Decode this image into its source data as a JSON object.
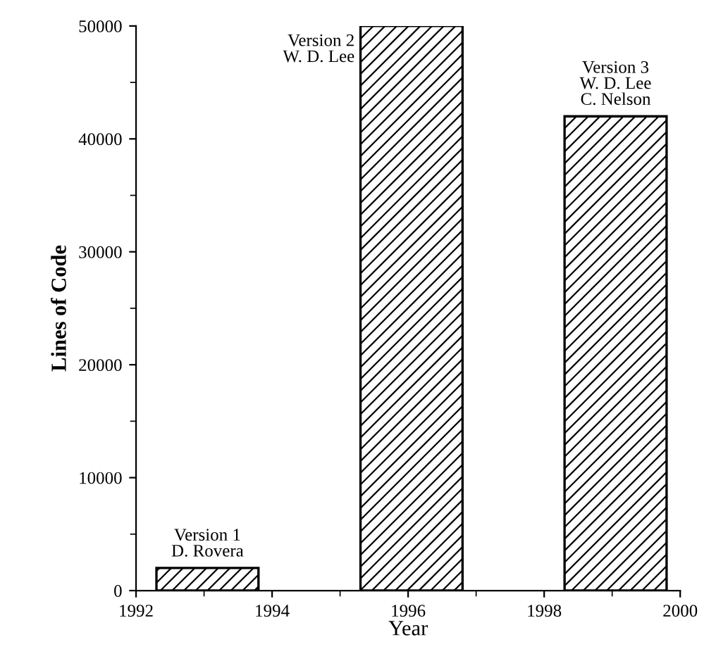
{
  "chart_data": {
    "type": "bar",
    "xlabel": "Year",
    "ylabel": "Lines of Code",
    "x": [
      1993.05,
      1996.05,
      1999.05
    ],
    "values": [
      2000,
      50000,
      42000
    ],
    "color": "#000000",
    "xlim": [
      1992,
      2000
    ],
    "xticks": [
      1992,
      1994,
      1996,
      1998,
      2000
    ],
    "ylim": [
      0,
      50000
    ],
    "yticks": [
      0,
      10000,
      20000,
      30000,
      40000,
      50000
    ],
    "grid": false,
    "legend": false,
    "annotations": [
      {
        "text": "Version 1\nD. Rovera",
        "x": 1993.05,
        "y": 2000
      },
      {
        "text": "Version 2\nW. D. Lee",
        "x": 1995.3,
        "y": 50000
      },
      {
        "text": "Version 3\nW. D. Lee\nC. Nelson",
        "x": 1999.05,
        "y": 42000
      }
    ]
  }
}
